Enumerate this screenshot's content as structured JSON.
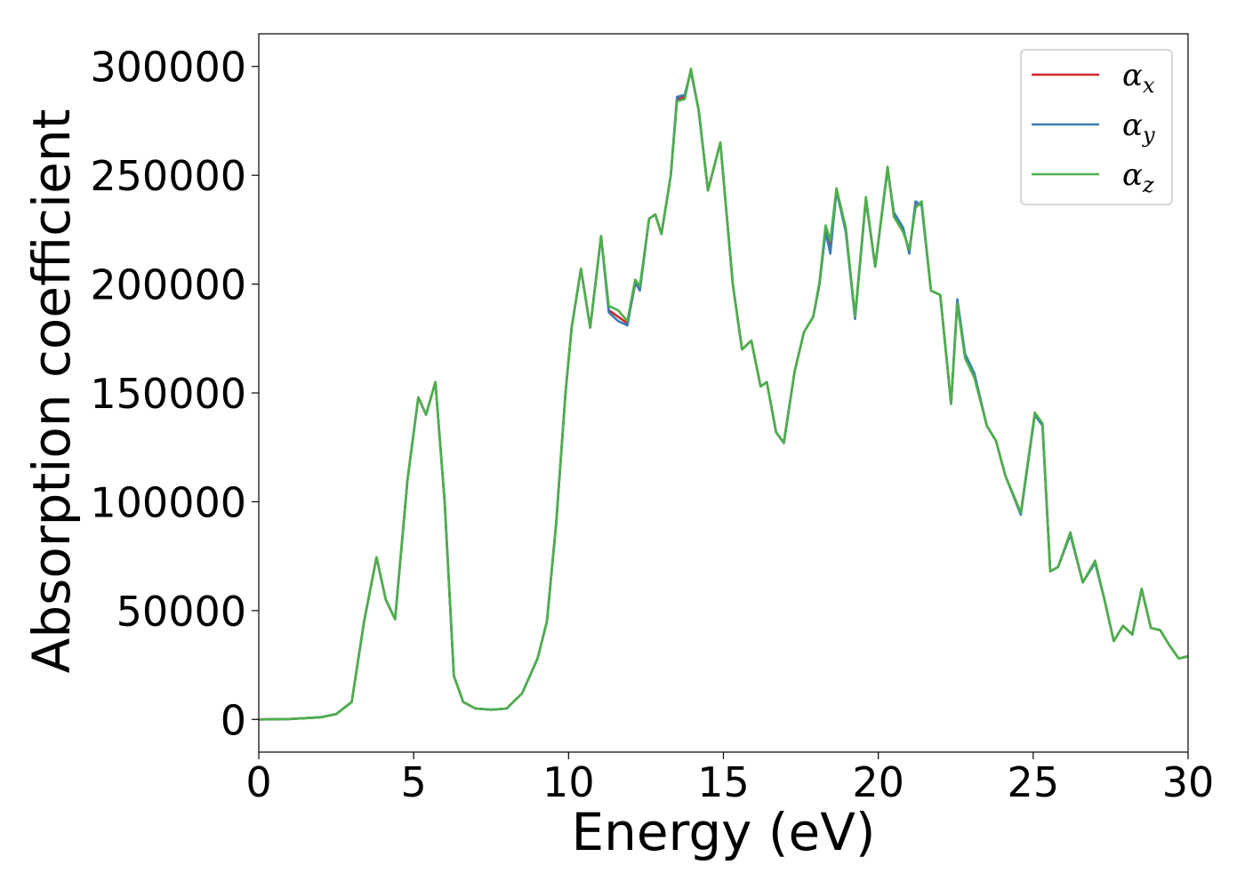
{
  "chart_data": {
    "type": "line",
    "title": "",
    "xlabel": "Energy (eV)",
    "ylabel": "Absorption coefficient",
    "xlim": [
      0,
      30
    ],
    "ylim": [
      -15000,
      315000
    ],
    "xticks": [
      0,
      5,
      10,
      15,
      20,
      25,
      30
    ],
    "xtick_labels": [
      "0",
      "5",
      "10",
      "15",
      "20",
      "25",
      "30"
    ],
    "yticks": [
      0,
      50000,
      100000,
      150000,
      200000,
      250000,
      300000
    ],
    "ytick_labels": [
      "0",
      "50000",
      "100000",
      "150000",
      "200000",
      "250000",
      "300000"
    ],
    "grid": false,
    "legend_position": "top-right",
    "x": [
      0,
      1,
      2,
      2.5,
      3,
      3.4,
      3.8,
      4.1,
      4.4,
      4.8,
      5.15,
      5.4,
      5.7,
      6.0,
      6.3,
      6.6,
      7.0,
      7.5,
      8.0,
      8.5,
      9.0,
      9.3,
      9.6,
      9.9,
      10.1,
      10.4,
      10.7,
      11.05,
      11.3,
      11.6,
      11.9,
      12.15,
      12.3,
      12.6,
      12.8,
      13.0,
      13.3,
      13.5,
      13.75,
      13.95,
      14.2,
      14.5,
      14.9,
      15.3,
      15.6,
      15.9,
      16.2,
      16.4,
      16.7,
      16.95,
      17.3,
      17.6,
      17.9,
      18.1,
      18.3,
      18.45,
      18.65,
      18.95,
      19.25,
      19.6,
      19.9,
      20.3,
      20.5,
      20.8,
      21.0,
      21.2,
      21.4,
      21.7,
      22.0,
      22.35,
      22.55,
      22.8,
      23.1,
      23.5,
      23.8,
      24.1,
      24.6,
      25.05,
      25.3,
      25.55,
      25.8,
      26.2,
      26.6,
      27.0,
      27.3,
      27.6,
      27.9,
      28.2,
      28.5,
      28.8,
      29.1,
      29.4,
      29.7,
      30.0
    ],
    "series": [
      {
        "name": "x",
        "color": "#d62728",
        "values": [
          0,
          200,
          1000,
          2500,
          8000,
          45000,
          74500,
          55000,
          46000,
          110000,
          148000,
          140000,
          155000,
          100000,
          20000,
          8000,
          5000,
          4500,
          5000,
          12000,
          28000,
          45000,
          90000,
          150000,
          180000,
          207000,
          180000,
          222000,
          188000,
          185000,
          182000,
          200000,
          198000,
          230000,
          232000,
          223000,
          250000,
          285000,
          286000,
          298000,
          280000,
          243000,
          265000,
          200000,
          170000,
          174000,
          153000,
          155000,
          132000,
          127000,
          160000,
          178000,
          185000,
          200000,
          226000,
          217000,
          243000,
          225000,
          185000,
          239000,
          208000,
          253000,
          232000,
          225000,
          215000,
          236000,
          237000,
          197000,
          195000,
          145000,
          192000,
          167000,
          158000,
          135000,
          128000,
          112000,
          95000,
          140000,
          135000,
          68000,
          70000,
          85000,
          63000,
          72000,
          55000,
          36000,
          43000,
          39000,
          60000,
          42000,
          41000,
          34000,
          28000,
          29000
        ]
      },
      {
        "name": "y",
        "color": "#377eb8",
        "values": [
          0,
          200,
          1000,
          2500,
          8000,
          45000,
          74500,
          55000,
          46000,
          110000,
          148000,
          140000,
          155000,
          100000,
          20000,
          8000,
          5000,
          4500,
          5000,
          12000,
          28000,
          45000,
          90000,
          150000,
          180000,
          207000,
          180000,
          222000,
          187000,
          183000,
          181000,
          201000,
          197000,
          230000,
          232000,
          223000,
          250000,
          286000,
          287000,
          298000,
          280000,
          243000,
          265000,
          200000,
          170000,
          174000,
          153000,
          155000,
          132000,
          127000,
          160000,
          178000,
          185000,
          200000,
          224000,
          214000,
          243000,
          224000,
          184000,
          239000,
          208000,
          253000,
          233000,
          226000,
          214000,
          238000,
          236000,
          197000,
          195000,
          145000,
          193000,
          168000,
          159000,
          135000,
          128000,
          112000,
          94000,
          140000,
          135000,
          68000,
          70000,
          85000,
          63000,
          72000,
          55000,
          36000,
          43000,
          39000,
          60000,
          42000,
          41000,
          34000,
          28000,
          29000
        ]
      },
      {
        "name": "z",
        "color": "#4daf4a",
        "values": [
          0,
          200,
          1000,
          2500,
          8000,
          45000,
          74500,
          55000,
          46000,
          110000,
          148000,
          140000,
          155000,
          100000,
          20000,
          8000,
          5000,
          4500,
          5000,
          12000,
          28000,
          45000,
          90000,
          150000,
          180000,
          207000,
          180000,
          222000,
          190000,
          188000,
          183000,
          202000,
          199000,
          230000,
          232000,
          223000,
          250000,
          284000,
          285000,
          299000,
          280000,
          243000,
          265000,
          200000,
          170000,
          174000,
          153000,
          155000,
          132000,
          127000,
          160000,
          178000,
          185000,
          201000,
          227000,
          220000,
          244000,
          226000,
          185000,
          240000,
          208000,
          254000,
          231000,
          224000,
          216000,
          235000,
          238000,
          197000,
          195000,
          145000,
          191000,
          166000,
          157000,
          135000,
          128000,
          112000,
          95000,
          141000,
          136000,
          68000,
          70000,
          86000,
          63000,
          73000,
          55000,
          36000,
          43000,
          39000,
          60000,
          42000,
          41000,
          34000,
          28000,
          29000
        ]
      }
    ]
  },
  "legend": {
    "symbol": "α",
    "entries": [
      {
        "sub": "x",
        "color": "#d62728"
      },
      {
        "sub": "y",
        "color": "#377eb8"
      },
      {
        "sub": "z",
        "color": "#4daf4a"
      }
    ]
  }
}
